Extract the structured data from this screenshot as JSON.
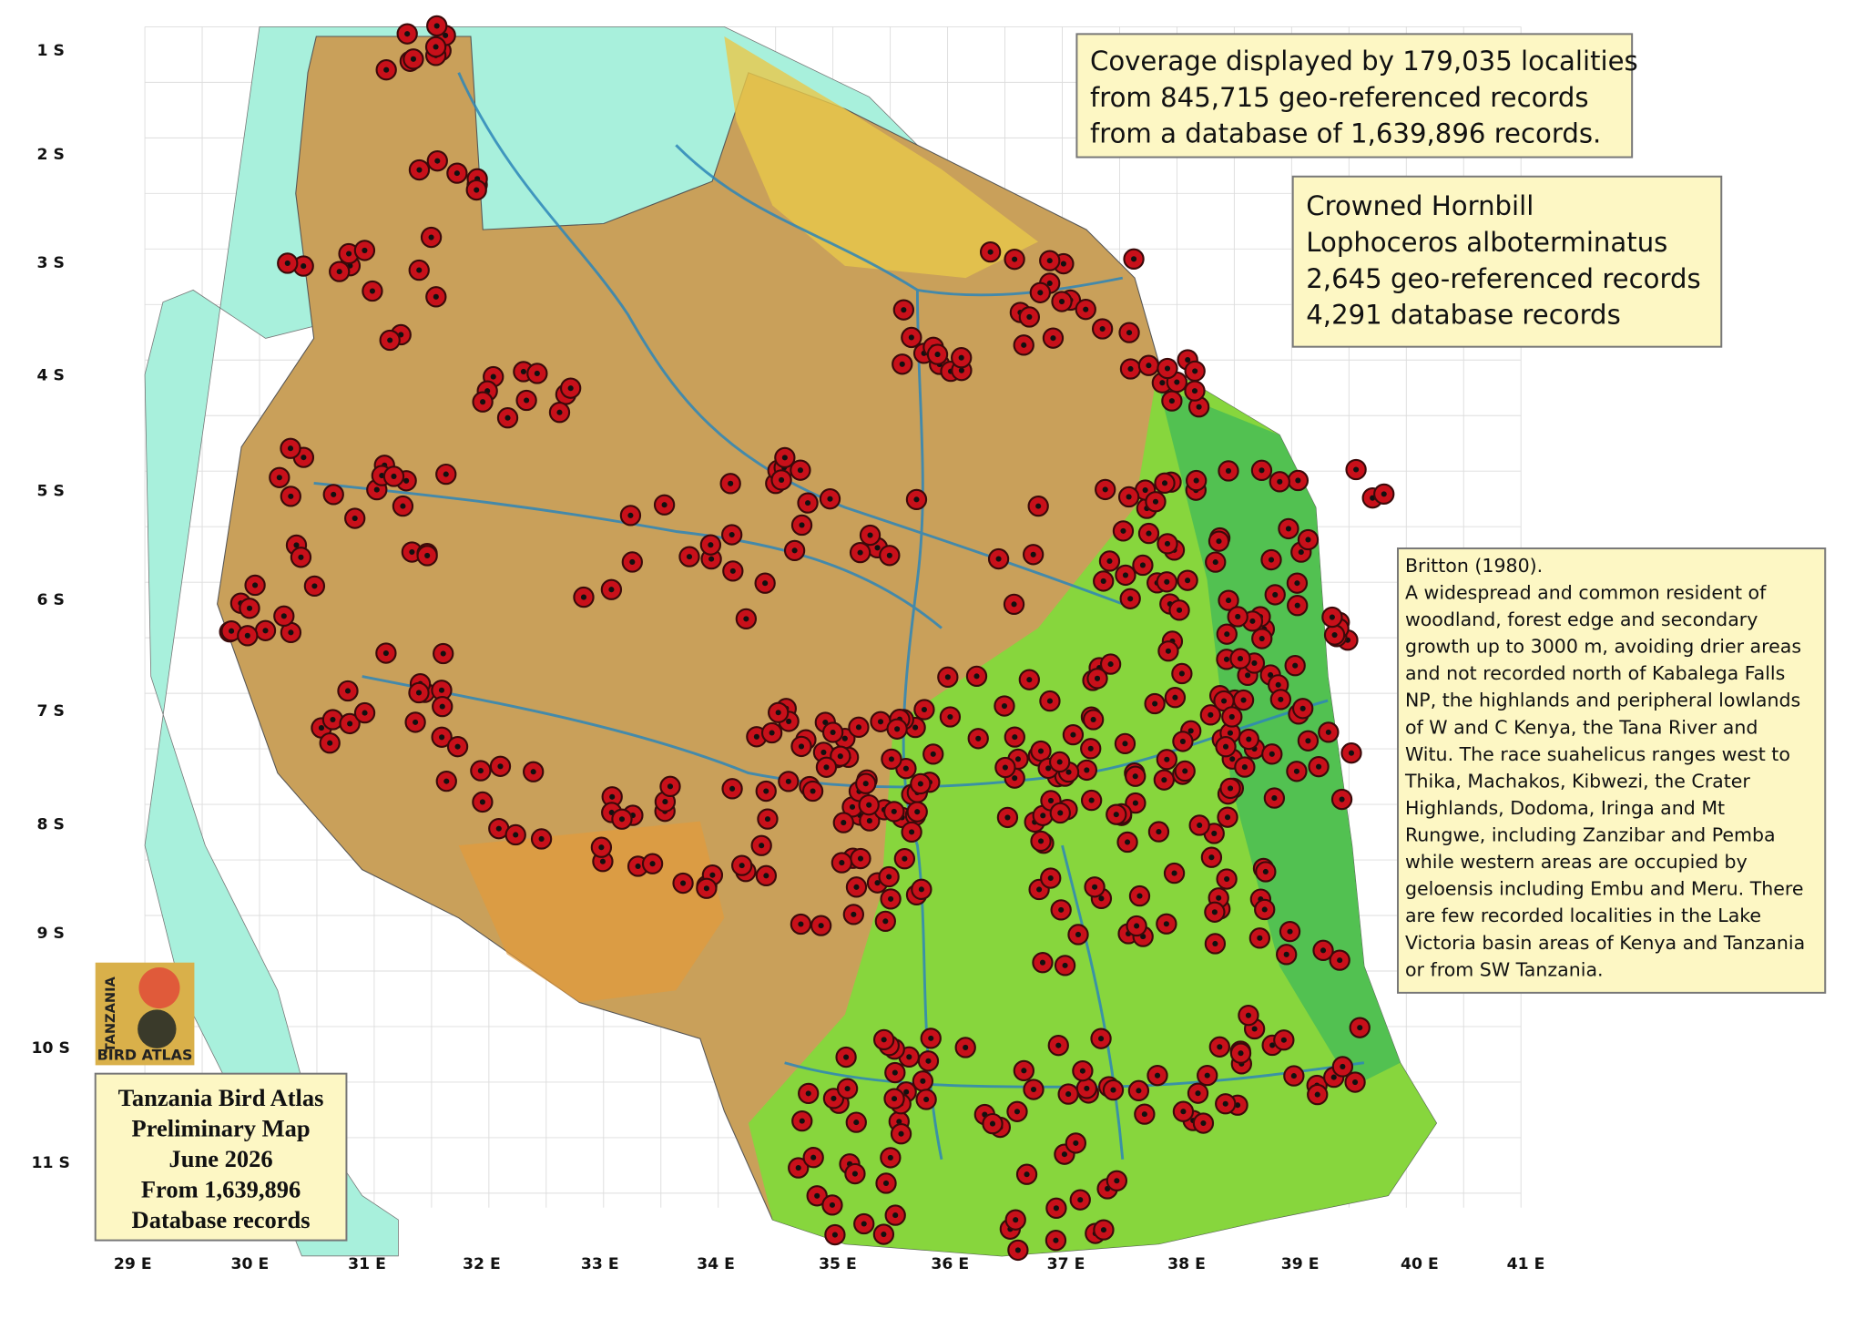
{
  "latitude_labels": [
    "1 S",
    "2 S",
    "3 S",
    "4 S",
    "5 S",
    "6 S",
    "7 S",
    "8 S",
    "9 S",
    "10 S",
    "11 S"
  ],
  "longitude_labels": [
    "29 E",
    "30 E",
    "31 E",
    "32 E",
    "33 E",
    "34 E",
    "35 E",
    "36 E",
    "37 E",
    "38 E",
    "39 E",
    "40 E",
    "41 E"
  ],
  "coverage": [
    "Coverage displayed by 179,035 localities",
    "from 845,715 geo-referenced records",
    "from a database of 1,639,896 records."
  ],
  "species": [
    "Crowned Hornbill",
    "Lophoceros alboterminatus",
    "2,645 geo-referenced records",
    "4,291 database records"
  ],
  "description": [
    "Britton (1980).",
    "A widespread and common resident of",
    "woodland, forest edge and secondary",
    "growth up to 3000 m, avoiding drier areas",
    "and not recorded north of Kabalega Falls",
    "NP, the highlands and peripheral lowlands",
    "of W and C Kenya, the Tana River and",
    "Witu. The race suahelicus ranges west to",
    "Thika, Machakos, Kibwezi, the Crater",
    "Highlands, Dodoma, Iringa and Mt",
    "Rungwe, including Zanzibar and Pemba",
    "while western areas are occupied by",
    "geloensis including Embu and Meru. There",
    "are few recorded localities in the Lake",
    "Victoria basin areas of Kenya and Tanzania",
    "or from SW Tanzania."
  ],
  "logo": {
    "top": "TANZANIA",
    "bottom": "BIRD ATLAS"
  },
  "atlas_box": [
    "Tanzania Bird Atlas",
    "Preliminary Map",
    "June 2026",
    "From 1,639,896",
    "Database records"
  ]
}
